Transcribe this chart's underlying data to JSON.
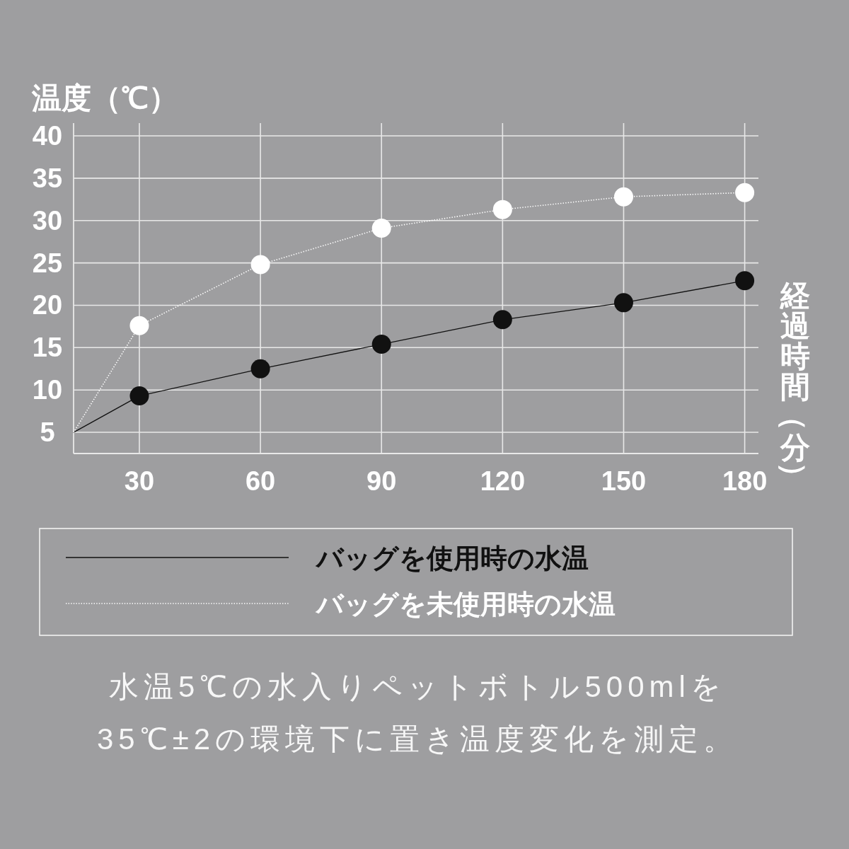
{
  "chart_data": {
    "type": "line",
    "ylabel": "温度（℃）",
    "xlabel": "経過時間（分）",
    "x": [
      13.7,
      30,
      60,
      90,
      120,
      150,
      180
    ],
    "xlim": [
      13.7,
      183.4
    ],
    "xticks": [
      30,
      60,
      90,
      120,
      150,
      180
    ],
    "ylim": [
      2.5,
      41.5
    ],
    "yticks": [
      5,
      10,
      15,
      20,
      25,
      30,
      35,
      40
    ],
    "grid": true,
    "marker": "circle",
    "legend": "bottom",
    "series": [
      {
        "name": "バッグを使用時の水温",
        "color": "#111111",
        "line_style": "solid",
        "values": [
          5,
          9.3,
          12.5,
          15.4,
          18.3,
          20.3,
          22.9
        ]
      },
      {
        "name": "バッグを未使用時の水温",
        "color": "#ffffff",
        "line_style": "dotted",
        "values": [
          5,
          17.6,
          24.8,
          29.1,
          31.3,
          32.8,
          33.3
        ]
      }
    ],
    "annotations": [
      "水温5℃の水入りペットボトル500mlを\n35℃±2の環境下に置き温度変化を測定。"
    ]
  }
}
